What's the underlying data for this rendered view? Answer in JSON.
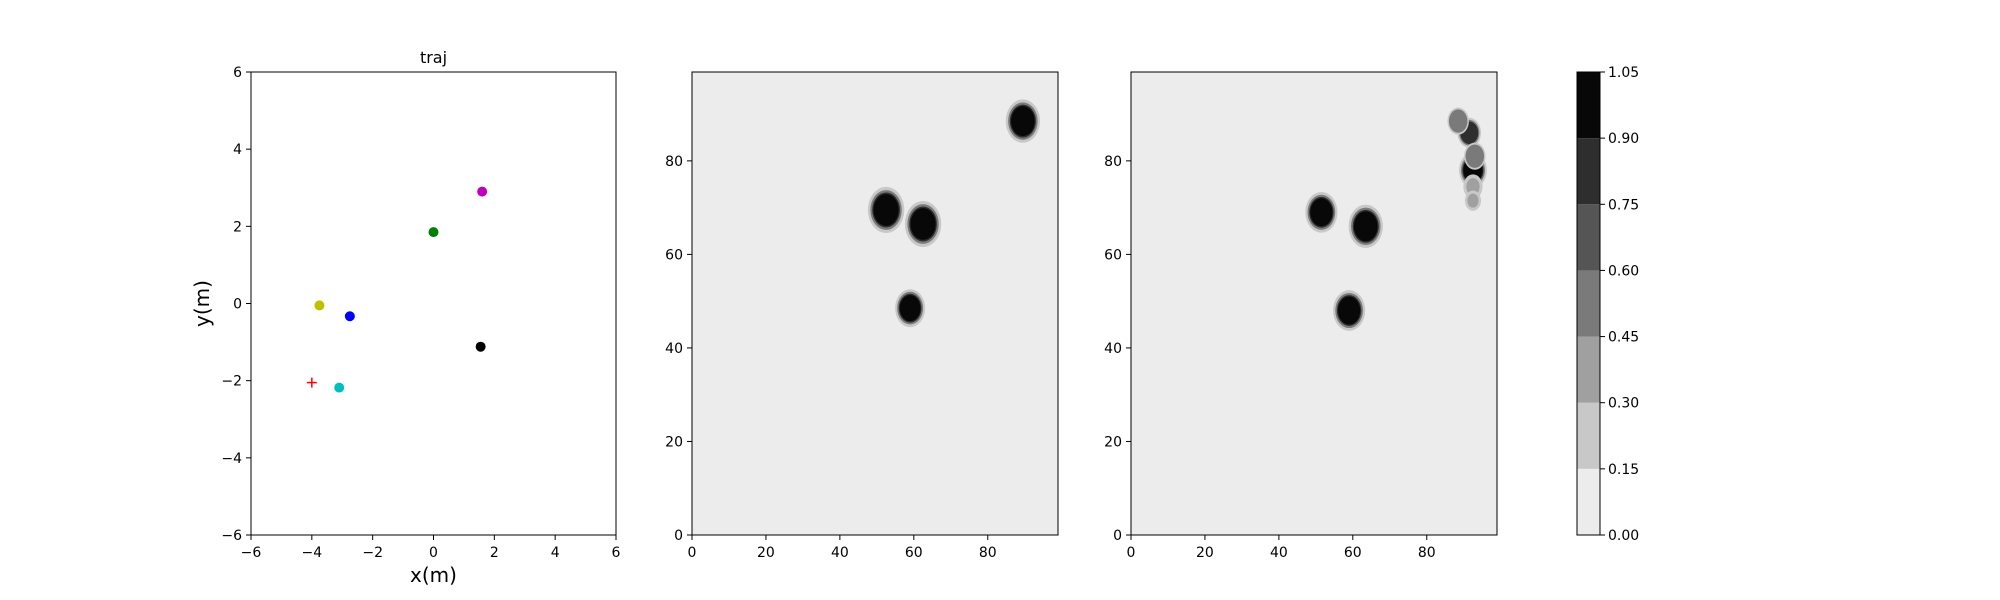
{
  "figure": {
    "background": "#ffffff"
  },
  "chart_data": [
    {
      "type": "scatter",
      "title": "traj",
      "xlabel": "x(m)",
      "ylabel": "y(m)",
      "xlim": [
        -6,
        6
      ],
      "ylim": [
        -6,
        6
      ],
      "xticks": [
        -6,
        -4,
        -2,
        0,
        2,
        4,
        6
      ],
      "yticks": [
        -6,
        -4,
        -2,
        0,
        2,
        4,
        6
      ],
      "grid": false,
      "points": [
        {
          "x": 0.0,
          "y": 1.85,
          "color": "#008000",
          "marker": "circle"
        },
        {
          "x": 1.6,
          "y": 2.9,
          "color": "#bf00bf",
          "marker": "circle"
        },
        {
          "x": -3.75,
          "y": -0.05,
          "color": "#bfbf00",
          "marker": "circle"
        },
        {
          "x": -2.75,
          "y": -0.33,
          "color": "#0000ff",
          "marker": "circle"
        },
        {
          "x": 1.55,
          "y": -1.12,
          "color": "#000000",
          "marker": "circle"
        },
        {
          "x": -3.1,
          "y": -2.18,
          "color": "#00bfbf",
          "marker": "circle"
        },
        {
          "x": -4.0,
          "y": -2.05,
          "color": "#ff0000",
          "marker": "plus"
        }
      ]
    },
    {
      "type": "heatmap",
      "title": "",
      "xlim": [
        0,
        99
      ],
      "ylim": [
        0,
        99
      ],
      "xticks": [
        0,
        20,
        40,
        60,
        80
      ],
      "yticks": [
        0,
        20,
        40,
        60,
        80
      ],
      "background_level": 0.07,
      "blobs": [
        {
          "cx": 52.5,
          "cy": 69.5,
          "r": 3.4,
          "level": 1.0
        },
        {
          "cx": 62.5,
          "cy": 66.5,
          "r": 3.4,
          "level": 1.0
        },
        {
          "cx": 59.0,
          "cy": 48.5,
          "r": 2.8,
          "level": 1.0
        },
        {
          "cx": 89.5,
          "cy": 88.5,
          "r": 3.2,
          "level": 1.0
        }
      ]
    },
    {
      "type": "heatmap",
      "title": "",
      "xlim": [
        0,
        99
      ],
      "ylim": [
        0,
        99
      ],
      "xticks": [
        0,
        20,
        40,
        60,
        80
      ],
      "yticks": [
        0,
        20,
        40,
        60,
        80
      ],
      "background_level": 0.07,
      "blobs": [
        {
          "cx": 51.5,
          "cy": 69.0,
          "r": 3.0,
          "level": 1.0
        },
        {
          "cx": 63.5,
          "cy": 66.0,
          "r": 3.2,
          "level": 1.0
        },
        {
          "cx": 59.0,
          "cy": 48.0,
          "r": 3.0,
          "level": 1.0
        },
        {
          "cx": 92.5,
          "cy": 78.0,
          "r": 2.6,
          "level": 1.0
        },
        {
          "cx": 91.5,
          "cy": 86.0,
          "r": 2.2,
          "level": 0.8
        },
        {
          "cx": 88.5,
          "cy": 88.5,
          "r": 2.0,
          "level": 0.5
        },
        {
          "cx": 93.0,
          "cy": 81.0,
          "r": 2.0,
          "level": 0.55
        },
        {
          "cx": 92.5,
          "cy": 74.5,
          "r": 1.8,
          "level": 0.4
        },
        {
          "cx": 92.5,
          "cy": 71.5,
          "r": 1.5,
          "level": 0.35
        }
      ]
    }
  ],
  "colorbar": {
    "levels": [
      0.0,
      0.15,
      0.3,
      0.45,
      0.6,
      0.75,
      0.9,
      1.05
    ],
    "tick_labels": [
      "0.00",
      "0.15",
      "0.30",
      "0.45",
      "0.60",
      "0.75",
      "0.90",
      "1.05"
    ],
    "colors": [
      "#ececec",
      "#c8c8c8",
      "#a0a0a0",
      "#7a7a7a",
      "#555555",
      "#2e2e2e",
      "#080808"
    ]
  }
}
